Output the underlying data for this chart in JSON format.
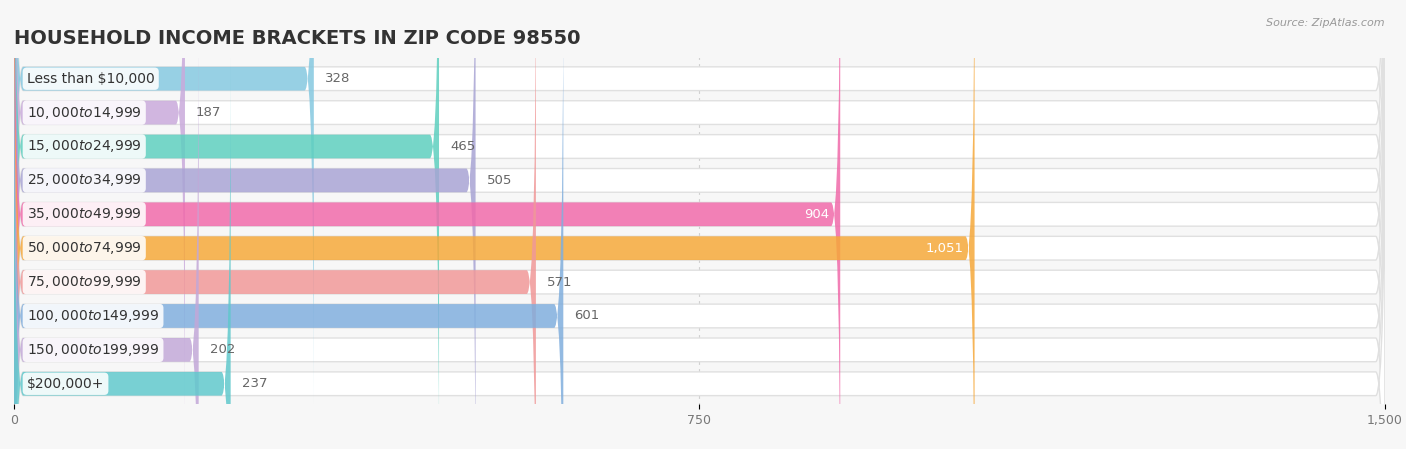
{
  "title": "HOUSEHOLD INCOME BRACKETS IN ZIP CODE 98550",
  "source": "Source: ZipAtlas.com",
  "categories": [
    "Less than $10,000",
    "$10,000 to $14,999",
    "$15,000 to $24,999",
    "$25,000 to $34,999",
    "$35,000 to $49,999",
    "$50,000 to $74,999",
    "$75,000 to $99,999",
    "$100,000 to $149,999",
    "$150,000 to $199,999",
    "$200,000+"
  ],
  "values": [
    328,
    187,
    465,
    505,
    904,
    1051,
    571,
    601,
    202,
    237
  ],
  "bar_colors": [
    "#85c8e0",
    "#c9aadb",
    "#5ecfbf",
    "#a8a4d4",
    "#f06aaa",
    "#f5a83a",
    "#f09898",
    "#80aedd",
    "#c2a8d8",
    "#60c8cc"
  ],
  "xlim": [
    0,
    1500
  ],
  "xticks": [
    0,
    750,
    1500
  ],
  "background_color": "#f7f7f7",
  "bar_bg_color": "#ffffff",
  "bar_bg_edge_color": "#e0e0e0",
  "title_fontsize": 14,
  "label_fontsize": 10,
  "value_fontsize": 9.5,
  "bar_height": 0.7,
  "figsize": [
    14.06,
    4.49
  ],
  "label_bg_color": "#ffffff",
  "value_inside_color": "#ffffff",
  "value_outside_color": "#666666",
  "value_inside_threshold": 700
}
